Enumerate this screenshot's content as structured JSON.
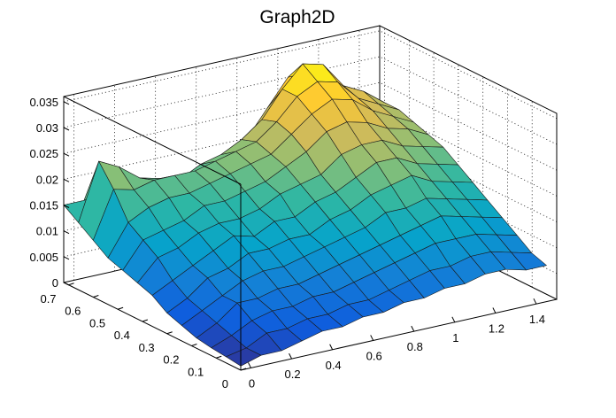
{
  "chart_data": {
    "type": "surface",
    "title": "Graph2D",
    "x_label": "",
    "y_label": "",
    "z_label": "",
    "x_range": [
      -0.05,
      1.5
    ],
    "y_range": [
      0,
      0.72
    ],
    "z_range": [
      0,
      0.036
    ],
    "x_ticks": [
      0,
      0.2,
      0.4,
      0.6,
      0.8,
      1,
      1.2,
      1.4
    ],
    "x_tick_labels": [
      "0",
      "0.2",
      "0.4",
      "0.6",
      "0.8",
      "1",
      "1.2",
      "1.4"
    ],
    "y_ticks": [
      0,
      0.1,
      0.2,
      0.3,
      0.4,
      0.5,
      0.6,
      0.7
    ],
    "y_tick_labels": [
      "0",
      "0.1",
      "0.2",
      "0.3",
      "0.4",
      "0.5",
      "0.6",
      "0.7"
    ],
    "z_ticks": [
      0,
      0.005,
      0.01,
      0.015,
      0.02,
      0.025,
      0.03,
      0.035
    ],
    "z_tick_labels": [
      "0",
      "0.005",
      "0.01",
      "0.015",
      "0.02",
      "0.025",
      "0.03",
      "0.035"
    ],
    "grid": true,
    "palette": [
      "#352a87",
      "#0f5cdd",
      "#1481d6",
      "#06a4ca",
      "#2eb7a4",
      "#87bf77",
      "#d1bb59",
      "#fec832",
      "#f9fb0e"
    ],
    "grid_x_values": [
      -0.05,
      0.05,
      0.15,
      0.25,
      0.35,
      0.45,
      0.55,
      0.65,
      0.75,
      0.85,
      0.95,
      1.05,
      1.15,
      1.25,
      1.35,
      1.45
    ],
    "grid_y_values": [
      0,
      0.06,
      0.12,
      0.18,
      0.24,
      0.3,
      0.36,
      0.42,
      0.48,
      0.54,
      0.6,
      0.66,
      0.72
    ],
    "z_values": [
      [
        0.0008,
        0.0012,
        0.0015,
        0.002,
        0.003,
        0.004,
        0.006,
        0.007,
        0.008,
        0.009,
        0.011,
        0.013,
        0.015
      ],
      [
        0.002,
        0.002,
        0.003,
        0.004,
        0.005,
        0.006,
        0.008,
        0.011,
        0.013,
        0.015,
        0.02,
        0.024,
        0.015
      ],
      [
        0.002,
        0.004,
        0.005,
        0.007,
        0.007,
        0.009,
        0.01,
        0.012,
        0.014,
        0.017,
        0.019,
        0.022,
        0.016
      ],
      [
        0.003,
        0.004,
        0.006,
        0.007,
        0.009,
        0.01,
        0.012,
        0.014,
        0.015,
        0.018,
        0.02,
        0.019,
        0.014
      ],
      [
        0.004,
        0.005,
        0.006,
        0.008,
        0.01,
        0.012,
        0.014,
        0.015,
        0.017,
        0.018,
        0.02,
        0.018,
        0.012
      ],
      [
        0.004,
        0.005,
        0.007,
        0.008,
        0.01,
        0.012,
        0.013,
        0.015,
        0.017,
        0.019,
        0.02,
        0.017,
        0.011
      ],
      [
        0.005,
        0.006,
        0.007,
        0.009,
        0.011,
        0.013,
        0.015,
        0.016,
        0.018,
        0.02,
        0.021,
        0.019,
        0.012
      ],
      [
        0.005,
        0.006,
        0.008,
        0.01,
        0.012,
        0.013,
        0.015,
        0.018,
        0.019,
        0.021,
        0.022,
        0.02,
        0.013
      ],
      [
        0.006,
        0.007,
        0.009,
        0.011,
        0.013,
        0.015,
        0.017,
        0.019,
        0.021,
        0.022,
        0.023,
        0.022,
        0.016
      ],
      [
        0.006,
        0.008,
        0.01,
        0.012,
        0.014,
        0.016,
        0.018,
        0.02,
        0.023,
        0.025,
        0.026,
        0.025,
        0.02
      ],
      [
        0.007,
        0.009,
        0.011,
        0.013,
        0.016,
        0.018,
        0.02,
        0.023,
        0.026,
        0.028,
        0.03,
        0.03,
        0.025
      ],
      [
        0.007,
        0.009,
        0.012,
        0.014,
        0.016,
        0.019,
        0.022,
        0.024,
        0.027,
        0.03,
        0.032,
        0.034,
        0.03
      ],
      [
        0.008,
        0.01,
        0.012,
        0.015,
        0.017,
        0.02,
        0.022,
        0.024,
        0.026,
        0.029,
        0.031,
        0.033,
        0.03
      ],
      [
        0.008,
        0.01,
        0.012,
        0.014,
        0.016,
        0.018,
        0.02,
        0.022,
        0.024,
        0.026,
        0.027,
        0.028,
        0.026
      ],
      [
        0.007,
        0.009,
        0.011,
        0.013,
        0.015,
        0.017,
        0.019,
        0.021,
        0.023,
        0.024,
        0.025,
        0.026,
        0.025
      ],
      [
        0.007,
        0.008,
        0.01,
        0.012,
        0.014,
        0.016,
        0.018,
        0.02,
        0.021,
        0.022,
        0.023,
        0.023,
        0.022
      ]
    ]
  }
}
